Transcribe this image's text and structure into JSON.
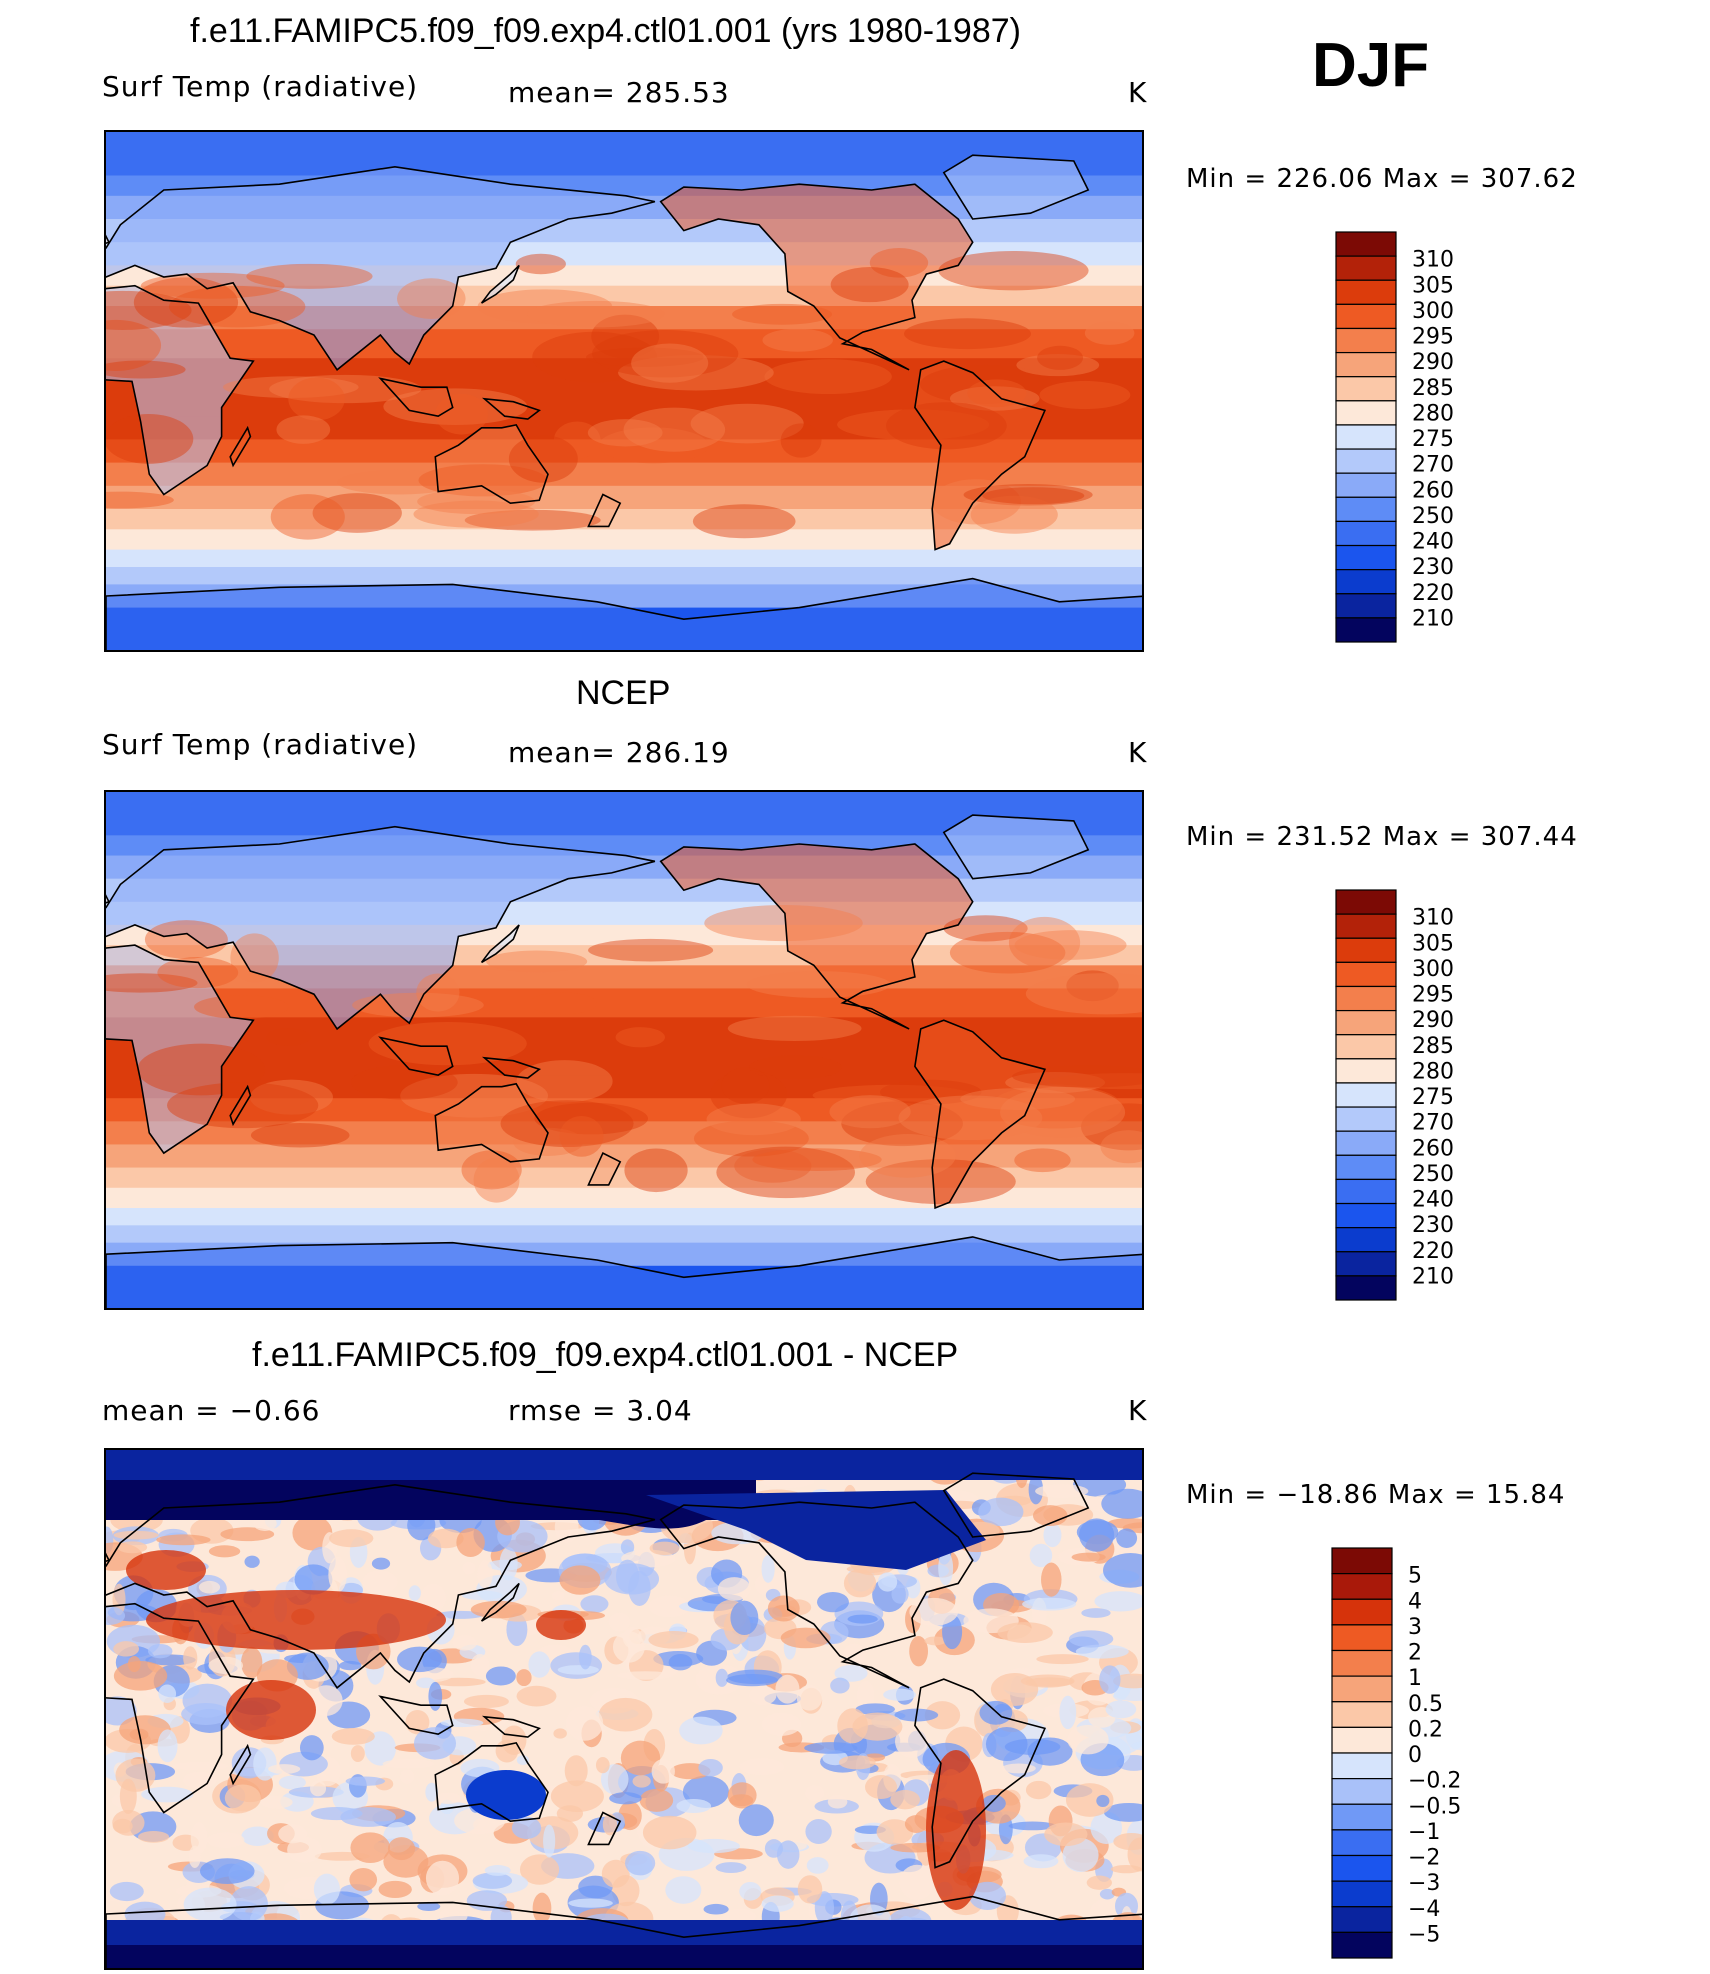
{
  "season": "DJF",
  "units": "K",
  "palette": {
    "temp": [
      "#03045e",
      "#0a249f",
      "#0b3cce",
      "#1b55ee",
      "#3a6ef2",
      "#5e8cf6",
      "#8aaaf8",
      "#b3c9fa",
      "#d6e4fc",
      "#fde8d9",
      "#fbc8a8",
      "#f6a47a",
      "#f37f4c",
      "#ee5a23",
      "#dc3c0c",
      "#b32209",
      "#7c0a05"
    ],
    "diff": [
      "#03045e",
      "#0a249f",
      "#0b3cce",
      "#1b55ee",
      "#3a6ef2",
      "#7099f6",
      "#a9c1f9",
      "#d6e4fc",
      "#fde8d9",
      "#fbc8a8",
      "#f6a47a",
      "#f37f4c",
      "#ee5a23",
      "#d6330b",
      "#a9190a",
      "#7c0a05"
    ],
    "coast": "#000000"
  },
  "panels": [
    {
      "title": "f.e11.FAMIPC5.f09_f09.exp4.ctl01.001 (yrs 1980-1987)",
      "left_label": "Surf Temp (radiative)",
      "center_label": "mean=  285.53",
      "units": "K",
      "minmax": "Min  =  226.06  Max  =  307.62",
      "chart_data": {
        "type": "heatmap",
        "variable": "Surf Temp (radiative)",
        "mean": 285.53,
        "min": 226.06,
        "max": 307.62,
        "colorbar_ticks": [
          "310",
          "305",
          "300",
          "295",
          "290",
          "285",
          "280",
          "275",
          "270",
          "260",
          "250",
          "240",
          "230",
          "220",
          "210"
        ]
      }
    },
    {
      "title": "NCEP",
      "left_label": "Surf Temp (radiative)",
      "center_label": "mean=  286.19",
      "units": "K",
      "minmax": "Min  =  231.52  Max  =  307.44",
      "chart_data": {
        "type": "heatmap",
        "variable": "Surf Temp (radiative)",
        "mean": 286.19,
        "min": 231.52,
        "max": 307.44,
        "colorbar_ticks": [
          "310",
          "305",
          "300",
          "295",
          "290",
          "285",
          "280",
          "275",
          "270",
          "260",
          "250",
          "240",
          "230",
          "220",
          "210"
        ]
      }
    },
    {
      "title": "f.e11.FAMIPC5.f09_f09.exp4.ctl01.001 - NCEP",
      "left_label": "mean  =     −0.66",
      "center_label": "rmse  =      3.04",
      "units": "K",
      "minmax": "Min  =  −18.86  Max  =    15.84",
      "chart_data": {
        "type": "heatmap",
        "variable": "difference",
        "mean": -0.66,
        "rmse": 3.04,
        "min": -18.86,
        "max": 15.84,
        "colorbar_ticks": [
          "5",
          "4",
          "3",
          "2",
          "1",
          "0.5",
          "0.2",
          "0",
          "−0.2",
          "−0.5",
          "−1",
          "−2",
          "−3",
          "−4",
          "−5"
        ]
      }
    }
  ]
}
